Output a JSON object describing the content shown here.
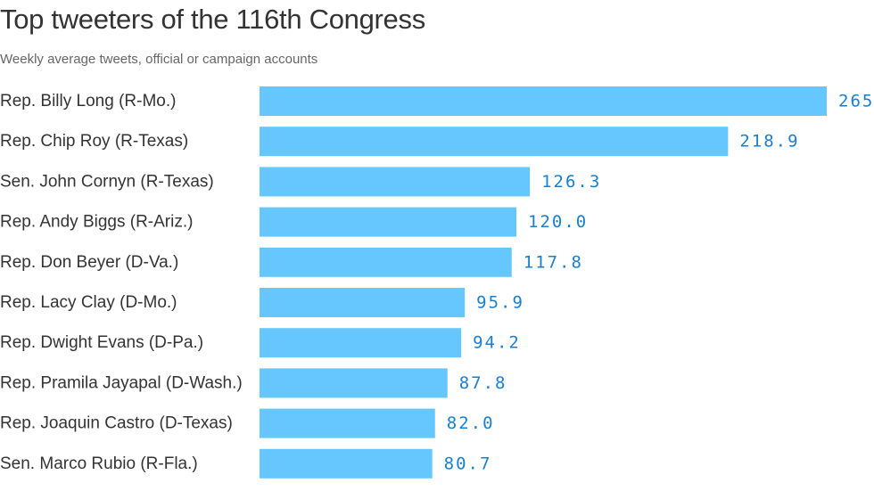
{
  "chart_data": {
    "type": "bar",
    "orientation": "horizontal",
    "title": "Top tweeters of the 116th Congress",
    "subtitle": "Weekly average tweets, official or campaign accounts",
    "categories": [
      "Rep. Billy Long (R-Mo.)",
      "Rep. Chip Roy (R-Texas)",
      "Sen. John Cornyn (R-Texas)",
      "Rep. Andy Biggs (R-Ariz.)",
      "Rep. Don Beyer (D-Va.)",
      "Rep. Lacy Clay (D-Mo.)",
      "Rep. Dwight Evans (D-Pa.)",
      "Rep. Pramila Jayapal (D-Wash.)",
      "Rep. Joaquin Castro (D-Texas)",
      "Sen. Marco Rubio (R-Fla.)"
    ],
    "values": [
      265,
      218.9,
      126.3,
      120.0,
      117.8,
      95.9,
      94.2,
      87.8,
      82.0,
      80.7
    ],
    "value_labels": [
      "265",
      "218.9",
      "126.3",
      "120.0",
      "117.8",
      "95.9",
      "94.2",
      "87.8",
      "82.0",
      "80.7"
    ],
    "xlim": [
      0,
      265
    ],
    "grid": false,
    "colors": {
      "bar": "#66C7FF",
      "value_label": "#1A7FD1",
      "text": "#333333",
      "subtitle": "#666666"
    }
  }
}
